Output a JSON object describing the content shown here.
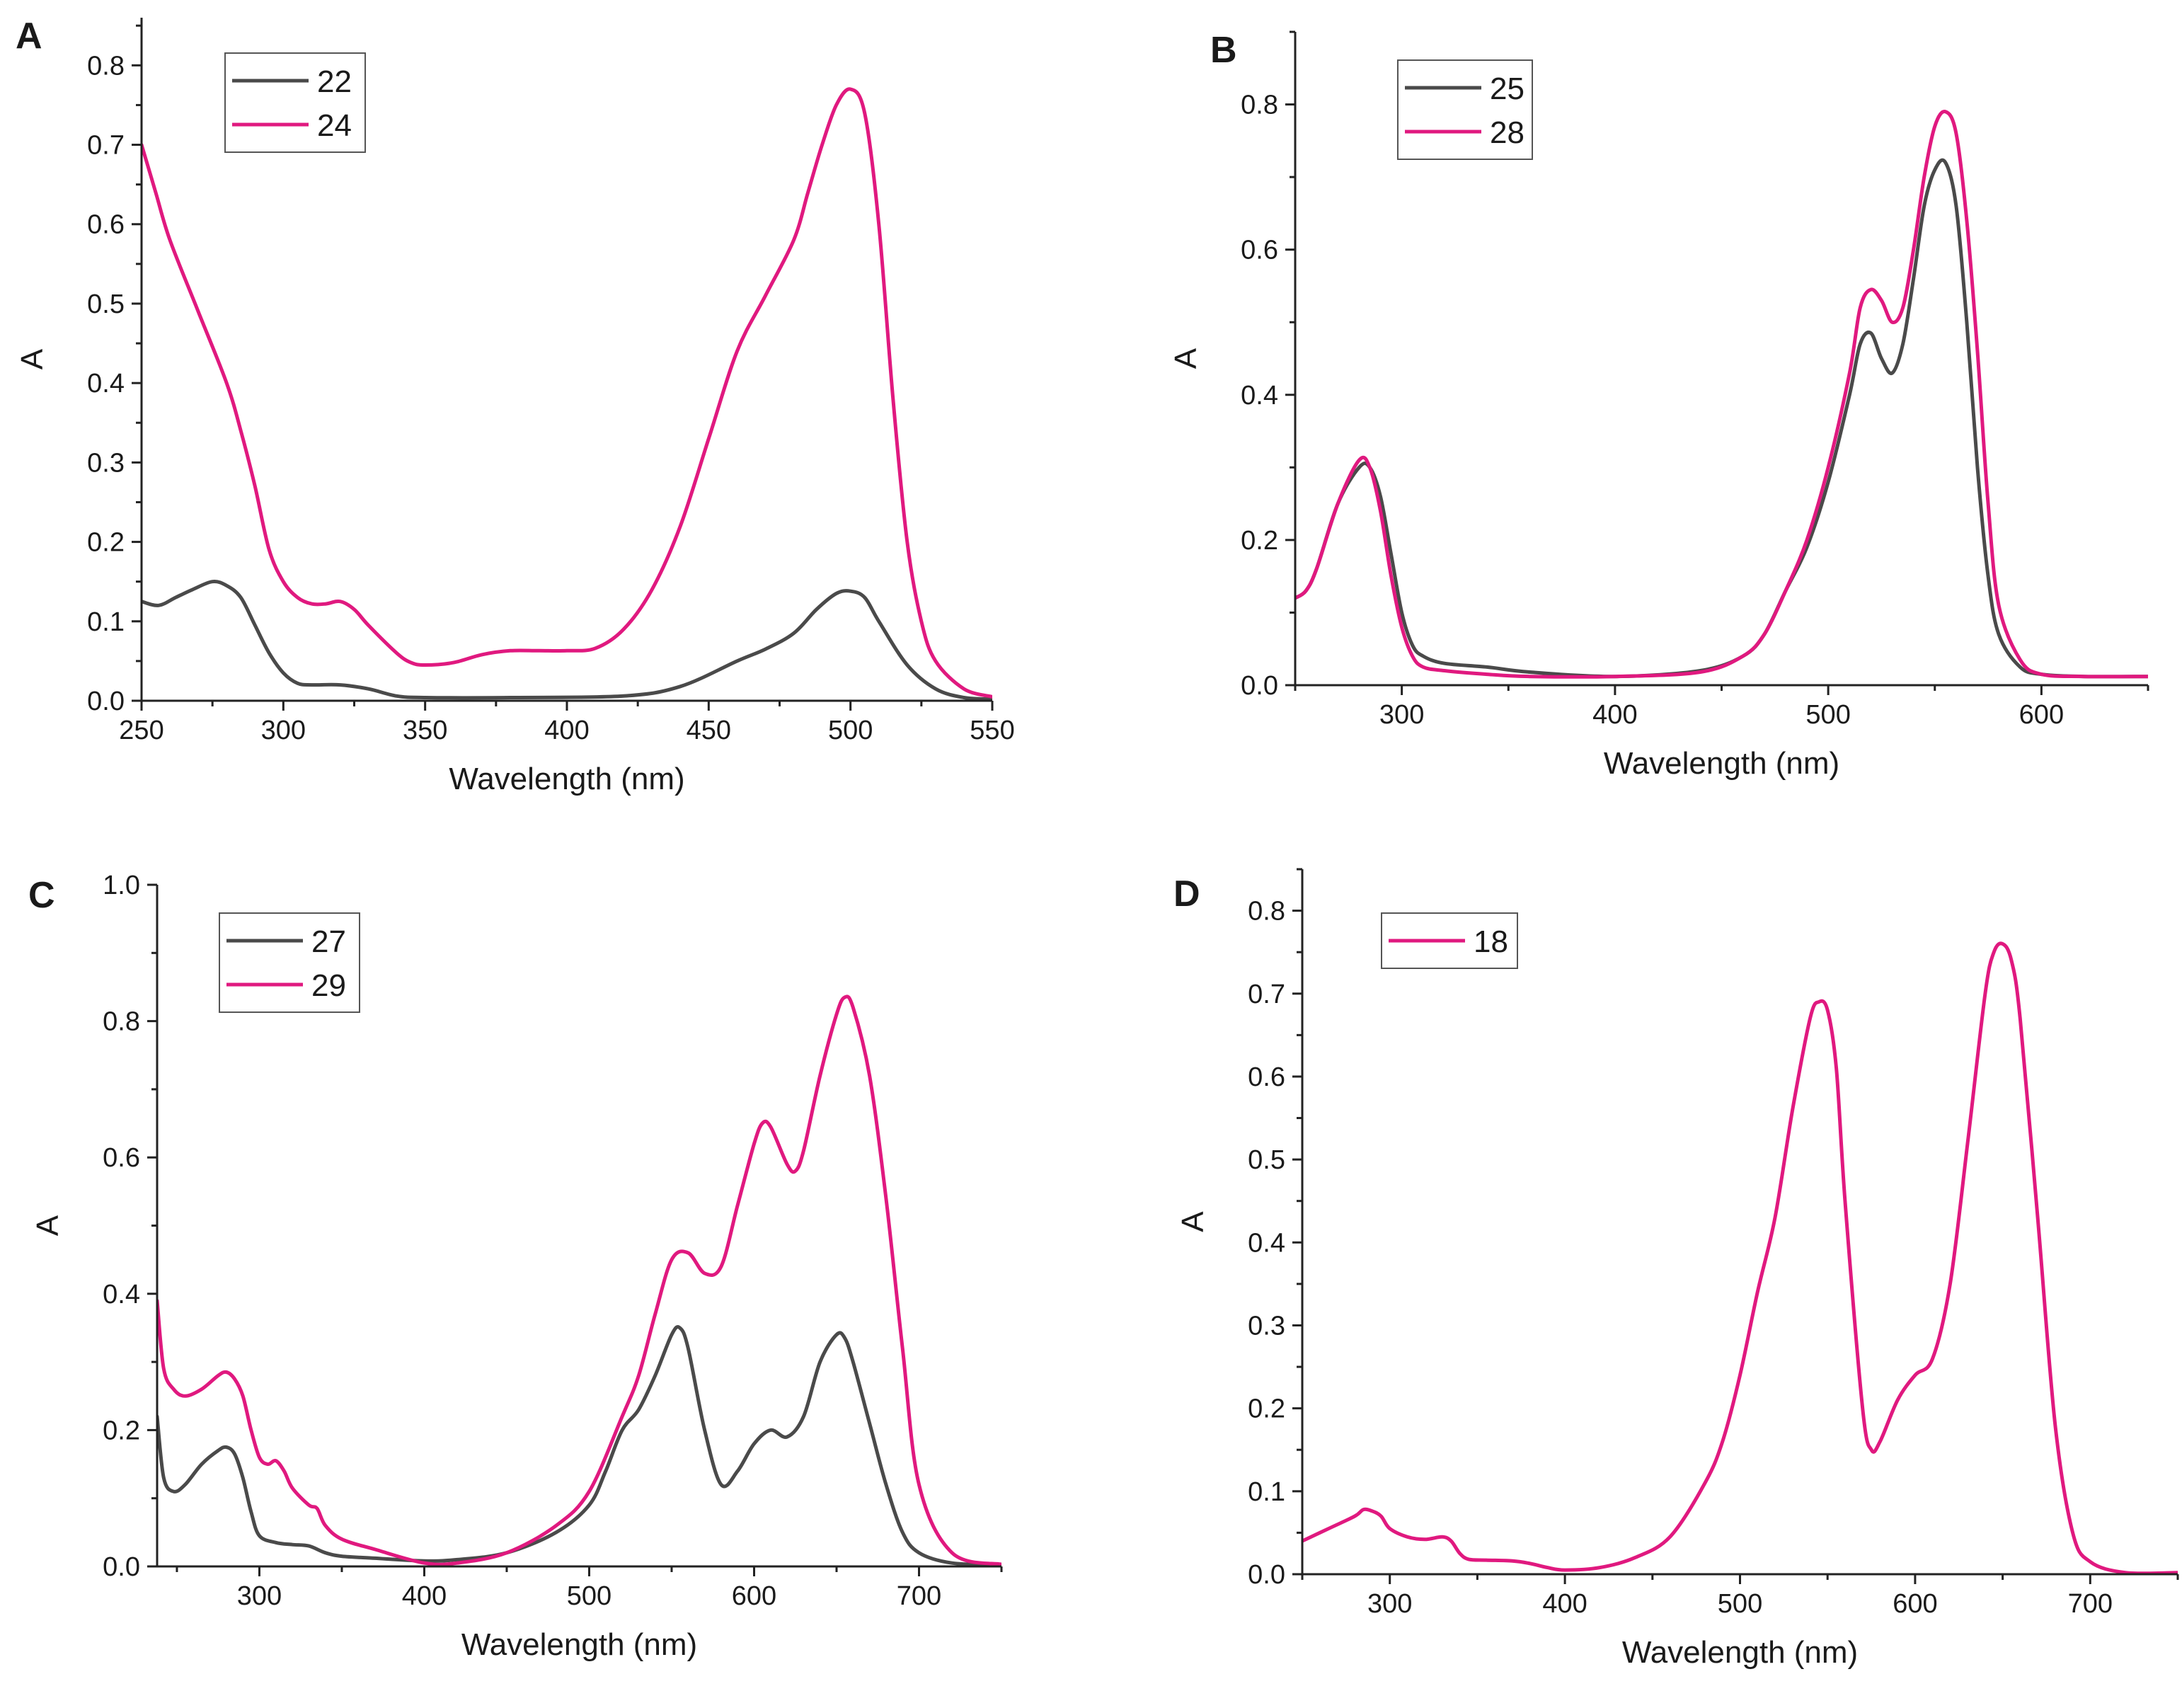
{
  "colors": {
    "dark": "#4a4a4a",
    "magenta": "#e0197f",
    "axis": "#222222"
  },
  "chart_data": [
    {
      "panel": "A",
      "type": "line",
      "xlabel": "Wavelength (nm)",
      "ylabel": "A",
      "xlim": [
        250,
        550
      ],
      "ylim": [
        0,
        0.86
      ],
      "xticks": [
        250,
        300,
        350,
        400,
        450,
        500,
        550
      ],
      "xtick_labels": [
        "250",
        "300",
        "350",
        "400",
        "450",
        "500",
        "550"
      ],
      "yticks": [
        0,
        0.1,
        0.2,
        0.3,
        0.4,
        0.5,
        0.6,
        0.7,
        0.8
      ],
      "ytick_labels": [
        "0.0",
        "0.1",
        "0.2",
        "0.3",
        "0.4",
        "0.5",
        "0.6",
        "0.7",
        "0.8"
      ],
      "legend": "top-left",
      "series": [
        {
          "name": "22",
          "color": "dark",
          "x": [
            250,
            256,
            262,
            268,
            275,
            280,
            285,
            290,
            295,
            300,
            305,
            310,
            320,
            330,
            340,
            350,
            380,
            420,
            440,
            460,
            470,
            480,
            488,
            495,
            500,
            505,
            510,
            520,
            530,
            540,
            550
          ],
          "y": [
            0.125,
            0.12,
            0.13,
            0.14,
            0.15,
            0.145,
            0.13,
            0.095,
            0.06,
            0.035,
            0.022,
            0.02,
            0.02,
            0.015,
            0.006,
            0.004,
            0.004,
            0.006,
            0.018,
            0.05,
            0.065,
            0.085,
            0.115,
            0.135,
            0.138,
            0.13,
            0.1,
            0.045,
            0.015,
            0.004,
            0.002
          ]
        },
        {
          "name": "24",
          "color": "magenta",
          "x": [
            250,
            255,
            260,
            270,
            280,
            285,
            290,
            295,
            300,
            305,
            310,
            315,
            320,
            325,
            330,
            340,
            345,
            350,
            360,
            370,
            380,
            390,
            400,
            410,
            420,
            430,
            440,
            450,
            460,
            470,
            480,
            485,
            490,
            495,
            500,
            505,
            510,
            515,
            520,
            525,
            530,
            540,
            550
          ],
          "y": [
            0.7,
            0.64,
            0.58,
            0.49,
            0.4,
            0.34,
            0.27,
            0.19,
            0.15,
            0.13,
            0.122,
            0.122,
            0.125,
            0.115,
            0.095,
            0.06,
            0.048,
            0.045,
            0.048,
            0.058,
            0.063,
            0.063,
            0.063,
            0.066,
            0.09,
            0.14,
            0.22,
            0.33,
            0.44,
            0.51,
            0.58,
            0.64,
            0.7,
            0.75,
            0.77,
            0.74,
            0.6,
            0.38,
            0.2,
            0.1,
            0.05,
            0.015,
            0.005
          ]
        }
      ]
    },
    {
      "panel": "B",
      "type": "line",
      "xlabel": "Wavelength (nm)",
      "ylabel": "A",
      "xlim": [
        250,
        650
      ],
      "ylim": [
        0,
        0.9
      ],
      "xticks": [
        300,
        400,
        500,
        600
      ],
      "xtick_labels": [
        "300",
        "400",
        "500",
        "600"
      ],
      "yticks": [
        0,
        0.2,
        0.4,
        0.6,
        0.8
      ],
      "ytick_labels": [
        "0.0",
        "0.2",
        "0.4",
        "0.6",
        "0.8"
      ],
      "legend": "top-left",
      "series": [
        {
          "name": "25",
          "color": "dark",
          "x": [
            250,
            255,
            260,
            270,
            280,
            285,
            290,
            295,
            300,
            305,
            310,
            320,
            340,
            360,
            400,
            440,
            460,
            470,
            480,
            490,
            500,
            510,
            515,
            520,
            525,
            530,
            535,
            540,
            545,
            550,
            555,
            560,
            565,
            570,
            575,
            580,
            590,
            600,
            620,
            650
          ],
          "y": [
            0.12,
            0.13,
            0.16,
            0.25,
            0.3,
            0.3,
            0.26,
            0.18,
            0.1,
            0.055,
            0.04,
            0.03,
            0.025,
            0.018,
            0.012,
            0.02,
            0.04,
            0.07,
            0.13,
            0.19,
            0.28,
            0.4,
            0.47,
            0.485,
            0.45,
            0.43,
            0.47,
            0.56,
            0.66,
            0.71,
            0.72,
            0.66,
            0.5,
            0.3,
            0.15,
            0.07,
            0.025,
            0.015,
            0.012,
            0.012
          ]
        },
        {
          "name": "28",
          "color": "magenta",
          "x": [
            250,
            255,
            260,
            270,
            280,
            285,
            290,
            295,
            300,
            305,
            310,
            320,
            340,
            360,
            400,
            440,
            460,
            470,
            480,
            490,
            500,
            510,
            515,
            520,
            525,
            530,
            535,
            540,
            545,
            550,
            555,
            560,
            565,
            570,
            575,
            580,
            590,
            600,
            620,
            650
          ],
          "y": [
            0.12,
            0.13,
            0.16,
            0.25,
            0.31,
            0.3,
            0.24,
            0.15,
            0.08,
            0.04,
            0.025,
            0.02,
            0.015,
            0.012,
            0.012,
            0.018,
            0.04,
            0.07,
            0.13,
            0.2,
            0.3,
            0.43,
            0.52,
            0.545,
            0.53,
            0.5,
            0.52,
            0.6,
            0.7,
            0.77,
            0.79,
            0.76,
            0.64,
            0.46,
            0.25,
            0.11,
            0.035,
            0.015,
            0.012,
            0.012
          ]
        }
      ]
    },
    {
      "panel": "C",
      "type": "line",
      "xlabel": "Wavelength (nm)",
      "ylabel": "A",
      "xlim": [
        238,
        750
      ],
      "ylim": [
        0,
        1.0
      ],
      "xticks": [
        300,
        400,
        500,
        600,
        700
      ],
      "xtick_labels": [
        "300",
        "400",
        "500",
        "600",
        "700"
      ],
      "yticks": [
        0,
        0.2,
        0.4,
        0.6,
        0.8,
        1.0
      ],
      "ytick_labels": [
        "0.0",
        "0.2",
        "0.4",
        "0.6",
        "0.8",
        "1.0"
      ],
      "legend": "top-left",
      "series": [
        {
          "name": "27",
          "color": "dark",
          "x": [
            238,
            242,
            248,
            255,
            265,
            275,
            280,
            285,
            290,
            295,
            300,
            310,
            320,
            330,
            340,
            350,
            370,
            400,
            420,
            450,
            480,
            500,
            510,
            520,
            530,
            540,
            550,
            555,
            560,
            570,
            580,
            590,
            600,
            610,
            620,
            630,
            640,
            650,
            655,
            660,
            670,
            680,
            690,
            700,
            720,
            750
          ],
          "y": [
            0.22,
            0.13,
            0.11,
            0.12,
            0.15,
            0.17,
            0.175,
            0.165,
            0.13,
            0.08,
            0.045,
            0.035,
            0.032,
            0.03,
            0.02,
            0.015,
            0.012,
            0.008,
            0.01,
            0.02,
            0.05,
            0.09,
            0.14,
            0.2,
            0.23,
            0.28,
            0.34,
            0.35,
            0.32,
            0.2,
            0.12,
            0.14,
            0.18,
            0.2,
            0.19,
            0.22,
            0.3,
            0.34,
            0.335,
            0.3,
            0.21,
            0.12,
            0.05,
            0.02,
            0.005,
            0.002
          ]
        },
        {
          "name": "29",
          "color": "magenta",
          "x": [
            238,
            242,
            248,
            255,
            265,
            275,
            280,
            285,
            290,
            295,
            300,
            305,
            310,
            315,
            320,
            330,
            335,
            340,
            350,
            370,
            400,
            420,
            450,
            480,
            500,
            520,
            530,
            540,
            550,
            560,
            570,
            580,
            590,
            600,
            605,
            610,
            620,
            625,
            630,
            640,
            650,
            655,
            660,
            670,
            680,
            690,
            700,
            720,
            750
          ],
          "y": [
            0.39,
            0.29,
            0.26,
            0.25,
            0.26,
            0.28,
            0.285,
            0.275,
            0.25,
            0.2,
            0.16,
            0.15,
            0.155,
            0.14,
            0.115,
            0.09,
            0.085,
            0.06,
            0.04,
            0.025,
            0.005,
            0.005,
            0.02,
            0.06,
            0.11,
            0.22,
            0.28,
            0.37,
            0.45,
            0.46,
            0.43,
            0.44,
            0.53,
            0.62,
            0.65,
            0.645,
            0.59,
            0.58,
            0.61,
            0.72,
            0.81,
            0.835,
            0.82,
            0.72,
            0.54,
            0.32,
            0.12,
            0.02,
            0.003
          ]
        }
      ]
    },
    {
      "panel": "D",
      "type": "line",
      "xlabel": "Wavelength (nm)",
      "ylabel": "A",
      "xlim": [
        250,
        750
      ],
      "ylim": [
        0,
        0.85
      ],
      "xticks": [
        300,
        400,
        500,
        600,
        700
      ],
      "xtick_labels": [
        "300",
        "400",
        "500",
        "600",
        "700"
      ],
      "yticks": [
        0,
        0.1,
        0.2,
        0.3,
        0.4,
        0.5,
        0.6,
        0.7,
        0.8
      ],
      "ytick_labels": [
        "0.0",
        "0.1",
        "0.2",
        "0.3",
        "0.4",
        "0.5",
        "0.6",
        "0.7",
        "0.8"
      ],
      "legend": "top-left",
      "series": [
        {
          "name": "18",
          "color": "magenta",
          "x": [
            250,
            265,
            280,
            285,
            290,
            295,
            300,
            310,
            320,
            330,
            335,
            340,
            345,
            355,
            370,
            380,
            390,
            400,
            420,
            440,
            460,
            480,
            490,
            500,
            510,
            520,
            530,
            540,
            545,
            550,
            555,
            560,
            570,
            575,
            580,
            590,
            600,
            610,
            620,
            630,
            640,
            645,
            650,
            655,
            660,
            670,
            680,
            690,
            700,
            720,
            750
          ],
          "y": [
            0.04,
            0.055,
            0.07,
            0.078,
            0.076,
            0.07,
            0.055,
            0.045,
            0.042,
            0.045,
            0.04,
            0.025,
            0.018,
            0.017,
            0.016,
            0.013,
            0.008,
            0.005,
            0.008,
            0.02,
            0.045,
            0.11,
            0.16,
            0.24,
            0.34,
            0.43,
            0.56,
            0.67,
            0.69,
            0.68,
            0.61,
            0.45,
            0.2,
            0.15,
            0.16,
            0.21,
            0.24,
            0.26,
            0.35,
            0.52,
            0.7,
            0.75,
            0.76,
            0.74,
            0.67,
            0.43,
            0.18,
            0.05,
            0.015,
            0.002,
            0.002
          ]
        }
      ]
    }
  ]
}
